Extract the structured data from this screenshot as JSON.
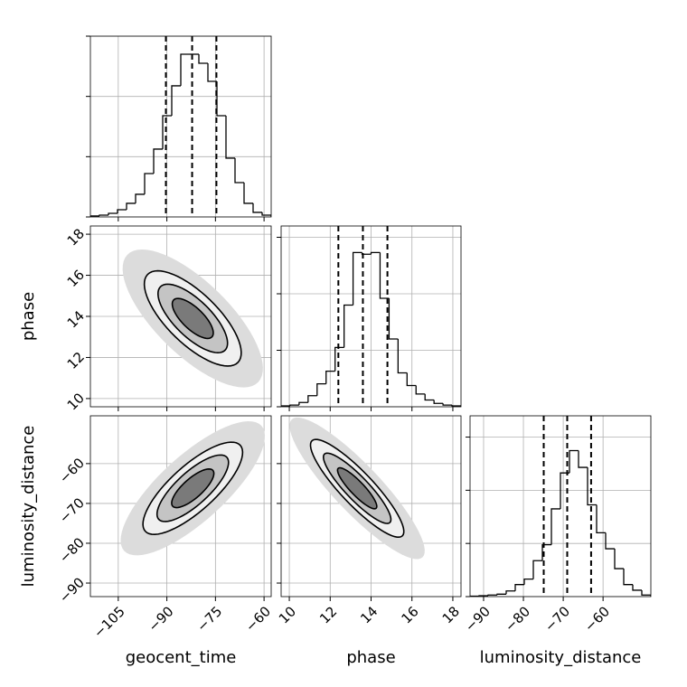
{
  "chart_data": {
    "type": "corner",
    "parameters": [
      {
        "label": "geocent_time",
        "lim": [
          -113.6,
          -57.8
        ],
        "ticks": [
          {
            "value": -105,
            "label": "−105"
          },
          {
            "value": -90,
            "label": "−90"
          },
          {
            "value": -75,
            "label": "−75"
          },
          {
            "value": -60,
            "label": "−60"
          }
        ],
        "quantiles": [
          -90.3,
          -82.2,
          -74.7
        ],
        "hist": {
          "bins": [
            -113.6,
            -110.81,
            -108.02,
            -105.23,
            -102.44,
            -99.65,
            -96.86,
            -94.07,
            -91.28,
            -88.49,
            -85.7,
            -82.91,
            -80.12,
            -77.33,
            -74.54,
            -71.75,
            -68.96,
            -66.17,
            -63.38,
            -60.59,
            -57.8
          ],
          "counts": [
            8,
            15,
            30,
            60,
            113,
            188,
            360,
            563,
            840,
            1088,
            1350,
            1350,
            1275,
            1125,
            840,
            488,
            285,
            113,
            38,
            15
          ],
          "ylim": [
            0,
            1500
          ],
          "yticks": [
            0,
            500,
            1000,
            1500
          ]
        }
      },
      {
        "label": "phase",
        "lim": [
          9.6,
          18.4
        ],
        "ticks": [
          10,
          12,
          14,
          16,
          18
        ],
        "quantiles": [
          12.4,
          13.6,
          14.8
        ],
        "hist": {
          "bins": [
            9.6,
            10.04,
            10.48,
            10.92,
            11.36,
            11.8,
            12.24,
            12.68,
            13.12,
            13.56,
            14.0,
            14.44,
            14.88,
            15.32,
            15.76,
            16.2,
            16.64,
            17.08,
            17.52,
            17.96,
            18.4
          ],
          "counts": [
            8,
            15,
            38,
            98,
            203,
            315,
            525,
            900,
            1365,
            1350,
            1365,
            960,
            600,
            300,
            188,
            113,
            60,
            30,
            15,
            8
          ],
          "ylim": [
            0,
            1600
          ],
          "yticks": [
            0,
            500,
            1000,
            1500
          ]
        }
      },
      {
        "label": "luminosity_distance",
        "lim": [
          -93.4,
          -48.0
        ],
        "ticks": [
          {
            "value": -90,
            "label": "−90"
          },
          {
            "value": -80,
            "label": "−80"
          },
          {
            "value": -70,
            "label": "−70"
          },
          {
            "value": -60,
            "label": "−60"
          }
        ],
        "quantiles": [
          -74.9,
          -69.0,
          -63.0
        ],
        "hist": {
          "bins": [
            -93.4,
            -91.13,
            -88.86,
            -86.59,
            -84.32,
            -82.05,
            -79.78,
            -77.51,
            -75.24,
            -72.97,
            -70.7,
            -68.43,
            -66.16,
            -63.89,
            -61.62,
            -59.35,
            -57.08,
            -54.81,
            -52.54,
            -50.27,
            -48.0
          ],
          "counts": [
            4,
            8,
            15,
            23,
            53,
            113,
            165,
            338,
            488,
            825,
            1163,
            1373,
            1215,
            863,
            600,
            450,
            263,
            113,
            60,
            15
          ],
          "ylim": [
            0,
            1700
          ],
          "yticks": [
            0,
            500,
            1000,
            1500
          ]
        }
      }
    ],
    "pairs": [
      [
        {
          "contours": [
            {
              "center": [
                -82.0,
                13.9
              ],
              "axis1": [
                20.2,
                -3.1
              ],
              "axis2": [
                7.8,
                1.29
              ],
              "fill": "#dcdcdc",
              "stroke": "none"
            },
            {
              "center": [
                -82.0,
                13.9
              ],
              "axis1": [
                13.95,
                -2.14
              ],
              "axis2": [
                5.4,
                0.89
              ],
              "fill": "#f0f0f0",
              "stroke": "#000"
            },
            {
              "center": [
                -82.0,
                13.9
              ],
              "axis1": [
                10.0,
                -1.54
              ],
              "axis2": [
                3.9,
                0.64
              ],
              "fill": "#c4c4c4",
              "stroke": "#000"
            },
            {
              "center": [
                -82.0,
                13.9
              ],
              "axis1": [
                5.9,
                -0.9
              ],
              "axis2": [
                2.3,
                0.37
              ],
              "fill": "#7a7a7a",
              "stroke": "#000"
            }
          ]
        }
      ],
      [
        {
          "contours": [
            {
              "center": [
                -82.0,
                -66.2
              ],
              "axis1": [
                21.2,
                15.7
              ],
              "axis2": [
                6.8,
                -6.1
              ],
              "fill": "#dcdcdc",
              "stroke": "none"
            },
            {
              "center": [
                -82.0,
                -66.2
              ],
              "axis1": [
                14.65,
                10.8
              ],
              "axis2": [
                4.69,
                -4.2
              ],
              "fill": "#f0f0f0",
              "stroke": "#000"
            },
            {
              "center": [
                -82.0,
                -66.2
              ],
              "axis1": [
                10.5,
                7.8
              ],
              "axis2": [
                3.4,
                -3.0
              ],
              "fill": "#c4c4c4",
              "stroke": "#000"
            },
            {
              "center": [
                -82.0,
                -66.2
              ],
              "axis1": [
                6.2,
                4.5
              ],
              "axis2": [
                2.0,
                -1.8
              ],
              "fill": "#7a7a7a",
              "stroke": "#000"
            }
          ]
        },
        {
          "contours": [
            {
              "center": [
                13.32,
                -66.2
              ],
              "axis1": [
                3.2,
                -17.3
              ],
              "axis2": [
                0.83,
                4.1
              ],
              "fill": "#dcdcdc",
              "stroke": "none"
            },
            {
              "center": [
                13.32,
                -66.2
              ],
              "axis1": [
                2.21,
                -11.95
              ],
              "axis2": [
                0.575,
                2.82
              ],
              "fill": "#f0f0f0",
              "stroke": "#000"
            },
            {
              "center": [
                13.32,
                -66.2
              ],
              "axis1": [
                1.6,
                -8.6
              ],
              "axis2": [
                0.41,
                2.0
              ],
              "fill": "#c4c4c4",
              "stroke": "#000"
            },
            {
              "center": [
                13.32,
                -66.2
              ],
              "axis1": [
                0.93,
                -5.0
              ],
              "axis2": [
                0.24,
                1.2
              ],
              "fill": "#7a7a7a",
              "stroke": "#000"
            }
          ]
        }
      ]
    ]
  }
}
